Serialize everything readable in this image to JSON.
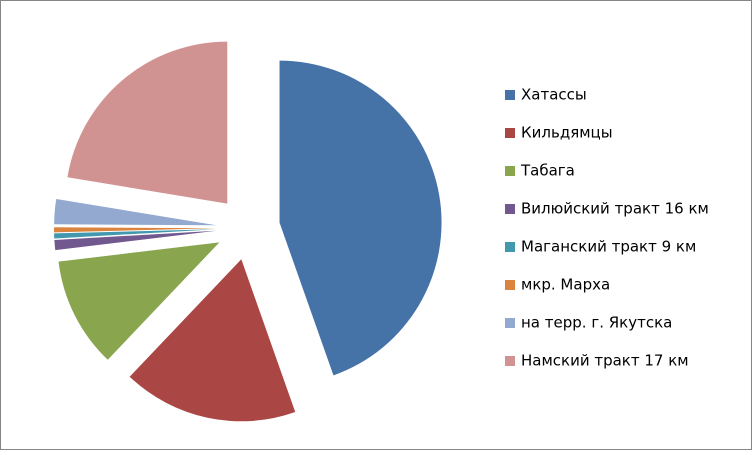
{
  "chart_data": {
    "type": "pie",
    "categories": [
      "Хатассы",
      "Кильдямцы",
      "Табага",
      "Вилюйский тракт 16 км",
      "Маганский тракт 9 км",
      "мкр. Марха",
      "на терр. г. Якутска",
      "Намский тракт 17 км"
    ],
    "values": [
      44.6,
      17.5,
      11,
      1,
      0.5,
      0.5,
      2.5,
      22.4
    ],
    "colors": [
      "#4572a7",
      "#aa4643",
      "#89a54e",
      "#71588f",
      "#4198af",
      "#db843d",
      "#93a9cf",
      "#d19392"
    ],
    "exploded": true,
    "legend": "right"
  }
}
